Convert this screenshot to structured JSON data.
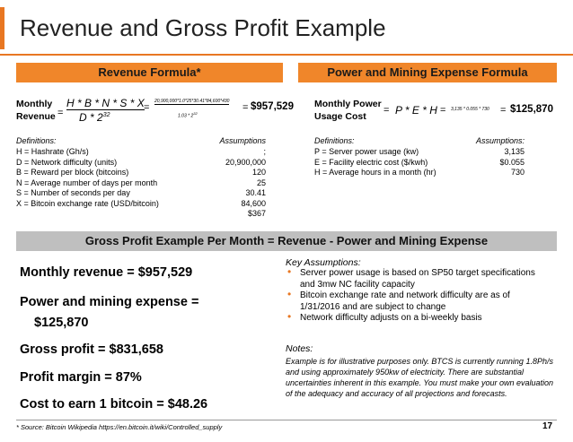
{
  "title": "Revenue and Gross Profit Example",
  "revenue": {
    "header": "Revenue Formula*",
    "label_line1": "Monthly",
    "label_line2": "Revenue",
    "numerator": "H * B * N * S * X",
    "denominator_base": "D * 2",
    "denominator_exp": "32",
    "calc_numerator": "20,900,000*1.0*25*30.41*84,600*430",
    "calc_denominator_base": "1.03 * 2",
    "calc_denominator_exp": "32",
    "result": "$957,529",
    "definitions_title": "Definitions:",
    "assumptions_title": "Assumptions",
    "rows": [
      [
        "H = Hashrate (Gh/s)",
        ";"
      ],
      [
        "D = Network difficulty (units)",
        "20,900,000"
      ],
      [
        "B = Reward per block  (bitcoins)",
        "120"
      ],
      [
        "N = Average number of days per month",
        "25"
      ],
      [
        "S = Number of seconds per day",
        "30.41"
      ],
      [
        "X = Bitcoin exchange rate (USD/bitcoin)",
        "84,600"
      ],
      [
        null,
        "$367"
      ]
    ]
  },
  "power": {
    "header": "Power and Mining Expense Formula",
    "label_line1": "Monthly Power",
    "label_line2": "Usage Cost",
    "formula": "P * E * H",
    "calc": "3,135 * 0.055 * 730",
    "result": "$125,870",
    "definitions_title": "Definitions:",
    "assumptions_title": "Assumptions:",
    "rows": [
      [
        "P = Server power usage (kw)",
        "3,135"
      ],
      [
        "E = Facility electric cost ($/kwh)",
        "$0.055"
      ],
      [
        "H = Average hours in a month (hr)",
        "730"
      ]
    ]
  },
  "gross": {
    "header": "Gross Profit Example Per Month = Revenue - Power and Mining Expense",
    "lines": [
      "Monthly revenue = $957,529",
      "Power and mining expense =",
      "$125,870",
      "Gross profit = $831,658",
      "Profit margin = 87%",
      "Cost to earn 1 bitcoin = $48.26"
    ],
    "key_title": "Key Assumptions:",
    "bullets": [
      "Server power usage is based on SP50 target specifications and 3mw NC facility capacity",
      "Bitcoin exchange rate and network difficulty are as of 1/31/2016 and are subject to change",
      "Network difficulty adjusts on a bi-weekly basis"
    ],
    "notes_title": "Notes:",
    "notes": "Example is for illustrative purposes only. BTCS is currently running 1.8Ph/s and using approximately 950kw of electricity. There are substantial uncertainties inherent in this example. You must make your own evaluation of the adequacy and accuracy of all projections and forecasts."
  },
  "footer": {
    "source": "* Source: Bitcoin Wikipedia https://en.bitcoin.it/wiki/Controlled_supply",
    "page": "17"
  }
}
